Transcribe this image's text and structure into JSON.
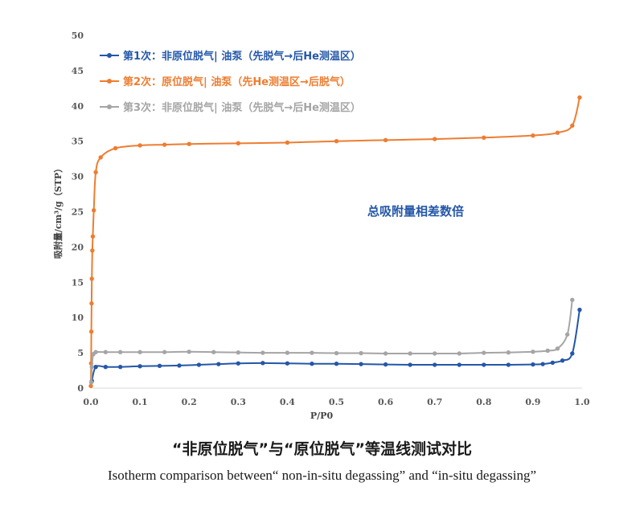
{
  "chart_data": {
    "type": "line",
    "xlabel": "P/P0",
    "ylabel": "吸附量/cm³/g（STP）",
    "xlim": [
      0,
      1.0
    ],
    "ylim": [
      0,
      50
    ],
    "xticks": [
      "0.0",
      "0.1",
      "0.2",
      "0.3",
      "0.4",
      "0.5",
      "0.6",
      "0.7",
      "0.8",
      "0.9",
      "1.0"
    ],
    "yticks": [
      "0",
      "5",
      "10",
      "15",
      "20",
      "25",
      "30",
      "35",
      "40",
      "45",
      "50"
    ],
    "grid": false,
    "legend_position": "top-left",
    "annotation": "总吸附量相差数倍",
    "series": [
      {
        "name": "第1次：非原位脱气| 油泵（先脱气→后He测温区）",
        "color": "#2457a8",
        "x": [
          0.002,
          0.01,
          0.03,
          0.06,
          0.1,
          0.14,
          0.18,
          0.22,
          0.26,
          0.3,
          0.35,
          0.4,
          0.45,
          0.5,
          0.55,
          0.6,
          0.65,
          0.7,
          0.75,
          0.8,
          0.85,
          0.9,
          0.92,
          0.94,
          0.96,
          0.98,
          0.995
        ],
        "y": [
          1.0,
          3.0,
          3.0,
          3.0,
          3.1,
          3.15,
          3.2,
          3.3,
          3.4,
          3.5,
          3.55,
          3.5,
          3.45,
          3.45,
          3.4,
          3.35,
          3.3,
          3.3,
          3.3,
          3.3,
          3.3,
          3.35,
          3.4,
          3.6,
          3.9,
          4.9,
          11.1
        ]
      },
      {
        "name": "第2次：原位脱气| 油泵（先He测温区→后脱气）",
        "color": "#ed7d31",
        "x": [
          0.0,
          0.0005,
          0.001,
          0.0015,
          0.002,
          0.003,
          0.004,
          0.006,
          0.01,
          0.02,
          0.05,
          0.1,
          0.15,
          0.2,
          0.3,
          0.4,
          0.5,
          0.6,
          0.7,
          0.8,
          0.9,
          0.95,
          0.98,
          0.995
        ],
        "y": [
          0.3,
          3.5,
          8.0,
          12.0,
          15.5,
          19.5,
          21.5,
          25.2,
          30.6,
          32.7,
          34.0,
          34.4,
          34.5,
          34.6,
          34.7,
          34.8,
          35.0,
          35.15,
          35.3,
          35.5,
          35.8,
          36.2,
          37.2,
          41.2
        ]
      },
      {
        "name": "第3次：非原位脱气| 油泵（先脱气→后He测温区）",
        "color": "#a5a5a5",
        "x": [
          0.001,
          0.002,
          0.005,
          0.01,
          0.03,
          0.06,
          0.1,
          0.15,
          0.2,
          0.25,
          0.3,
          0.35,
          0.4,
          0.45,
          0.5,
          0.55,
          0.6,
          0.65,
          0.7,
          0.75,
          0.8,
          0.85,
          0.9,
          0.93,
          0.95,
          0.97,
          0.98
        ],
        "y": [
          0.8,
          3.0,
          4.8,
          5.1,
          5.1,
          5.1,
          5.1,
          5.1,
          5.15,
          5.1,
          5.05,
          5.0,
          5.0,
          5.0,
          4.95,
          4.95,
          4.9,
          4.9,
          4.9,
          4.9,
          5.0,
          5.05,
          5.15,
          5.3,
          5.6,
          7.6,
          12.5
        ]
      }
    ]
  },
  "caption": {
    "chinese": "“非原位脱气”与“原位脱气”等温线测试对比",
    "english": "Isotherm comparison between“ non-in-situ degassing” and “in-situ degassing”"
  }
}
